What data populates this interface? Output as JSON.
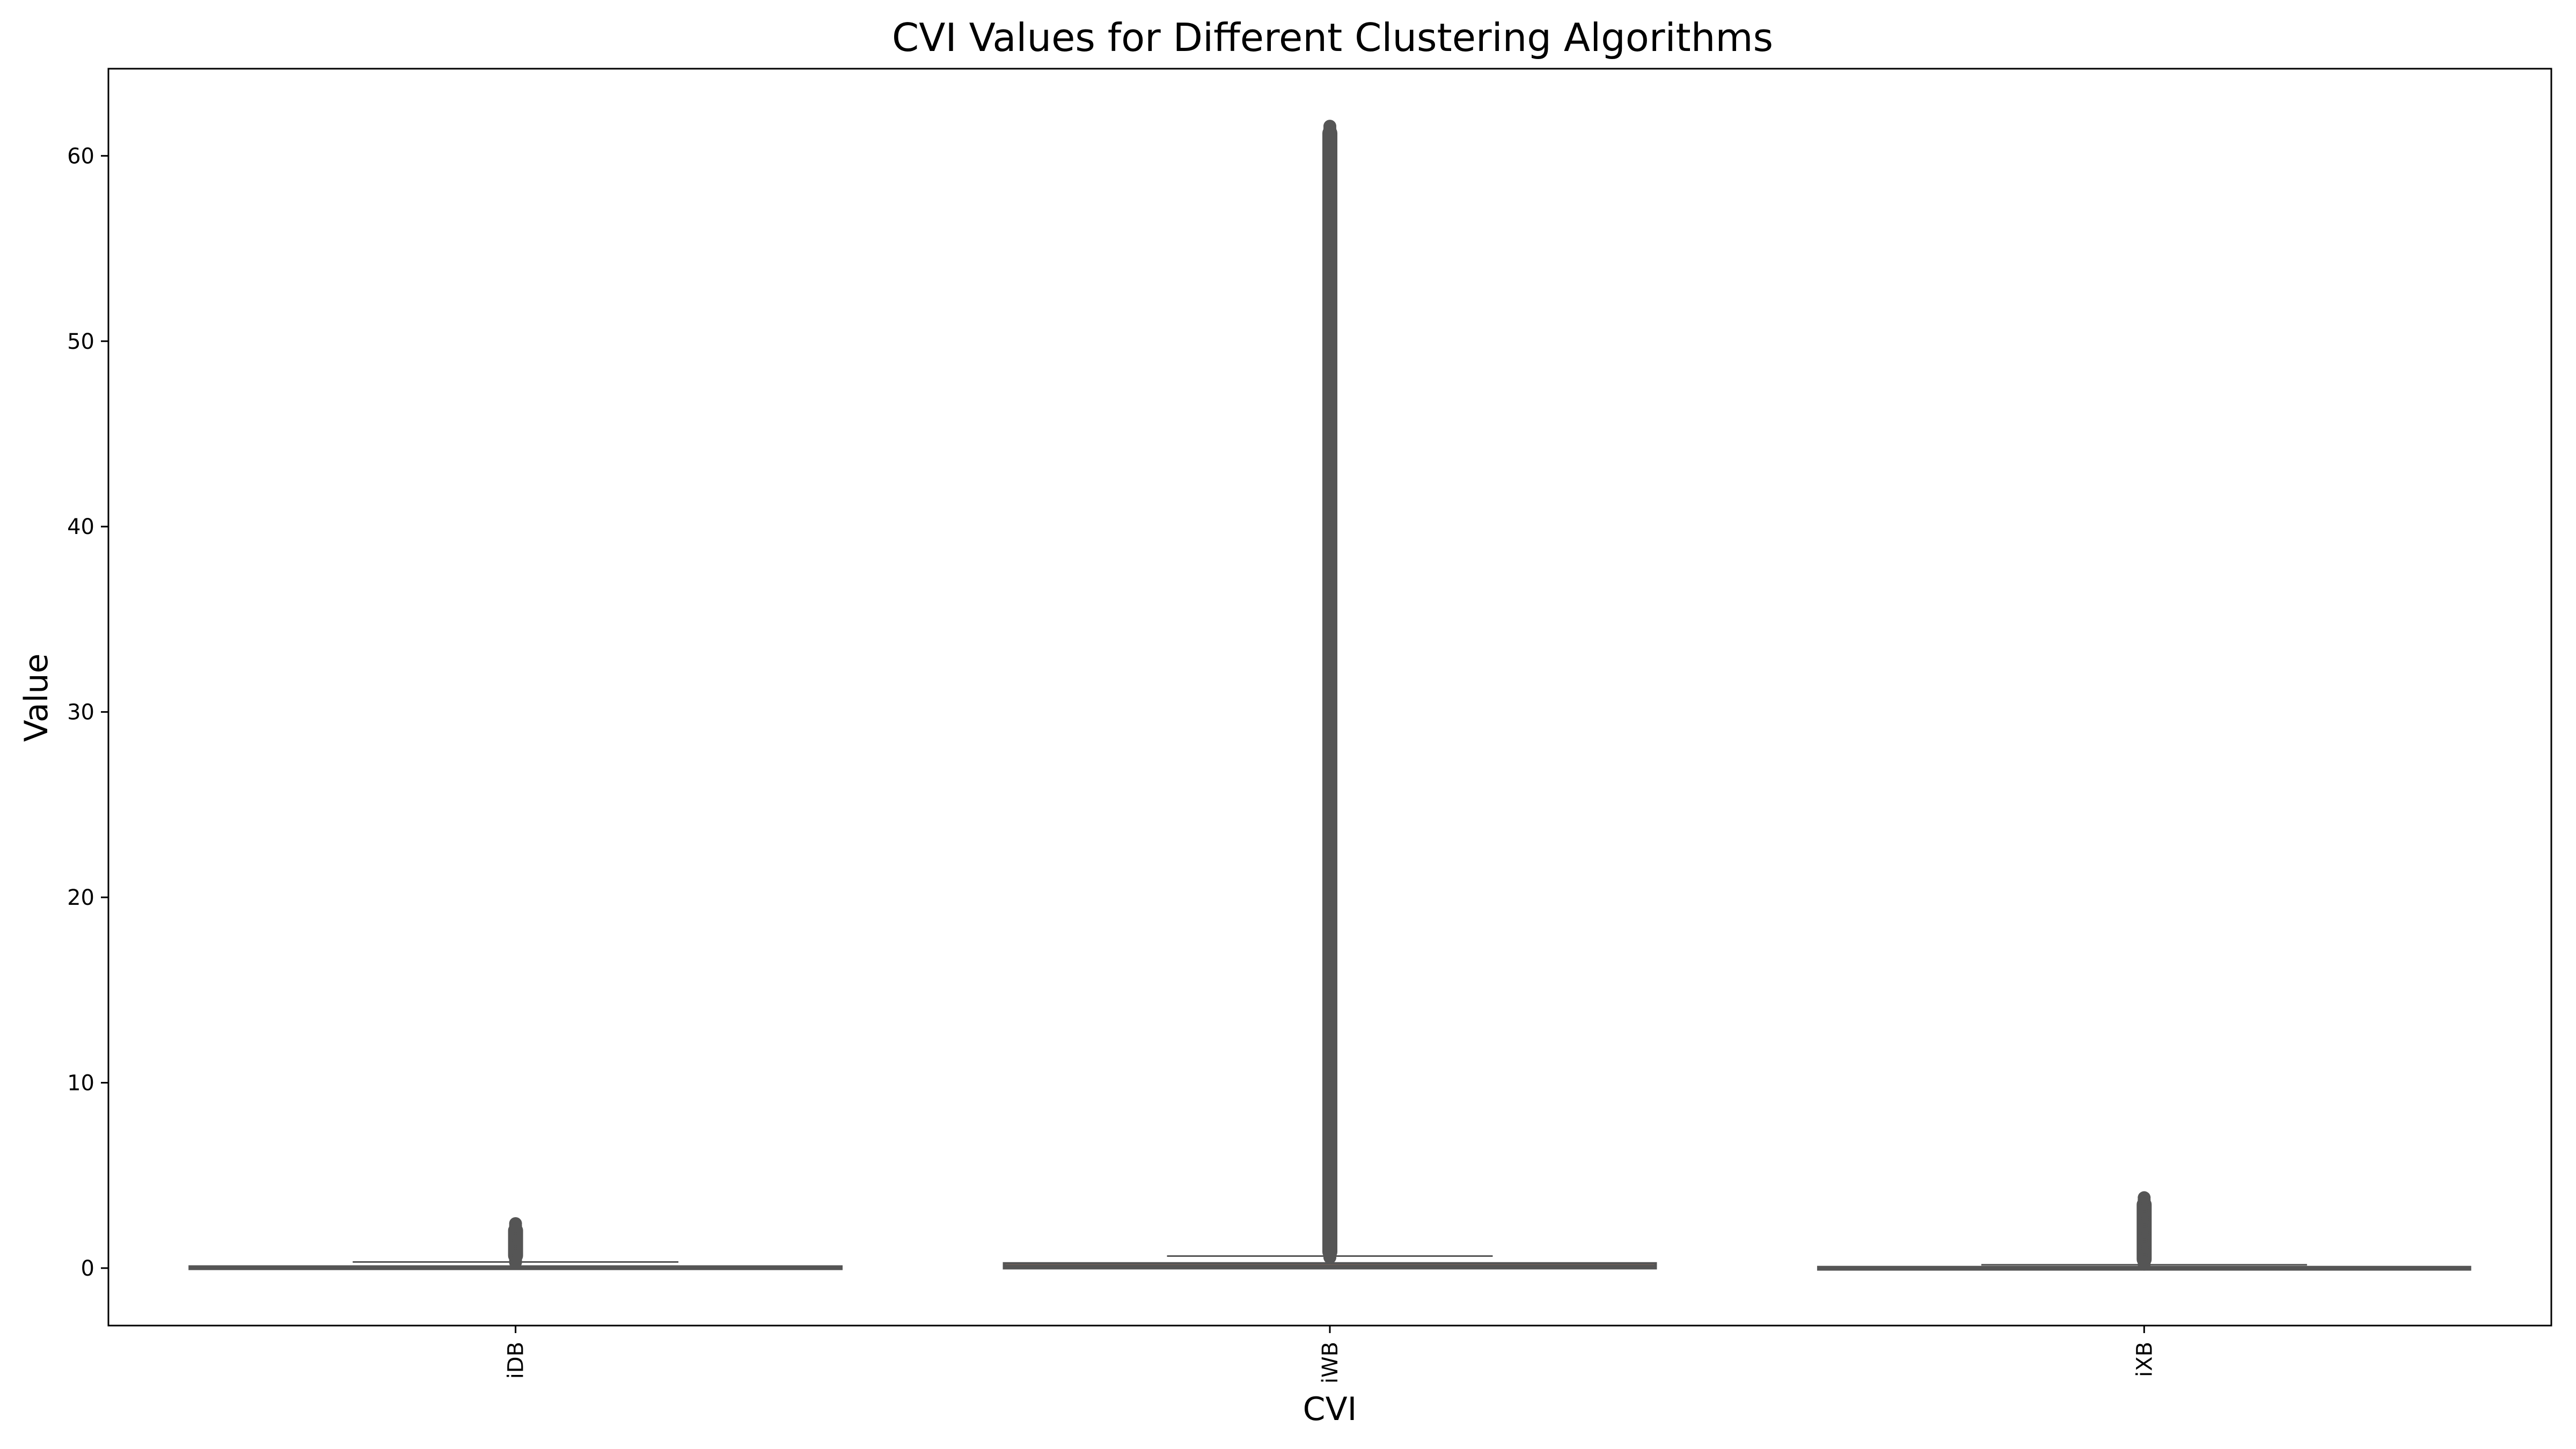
{
  "chart_data": {
    "type": "box",
    "title": "CVI Values for Different Clustering Algorithms",
    "xlabel": "CVI",
    "ylabel": "Value",
    "categories": [
      "iDB",
      "iWB",
      "iXB"
    ],
    "ylim": [
      -3.1,
      64.7
    ],
    "yticks": [
      "0",
      "10",
      "20",
      "30",
      "40",
      "50",
      "60"
    ],
    "grid": false,
    "colors": {
      "box_edge": "#555555",
      "line": "#555555",
      "iWB_fill": "#ee8866",
      "frame": "#000000"
    },
    "boxes": [
      {
        "name": "iDB",
        "whisker_low": 0.0,
        "q1": 0.02,
        "median": 0.05,
        "q3": 0.08,
        "whisker_high": 0.33,
        "outlier_range": [
          0.3,
          2.4
        ]
      },
      {
        "name": "iWB",
        "whisker_low": 0.0,
        "q1": 0.0,
        "median": 0.1,
        "q3": 0.25,
        "whisker_high": 0.65,
        "outlier_range": [
          0.5,
          61.6
        ]
      },
      {
        "name": "iXB",
        "whisker_low": 0.0,
        "q1": 0.0,
        "median": 0.03,
        "q3": 0.05,
        "whisker_high": 0.18,
        "outlier_range": [
          0.1,
          3.8
        ]
      }
    ]
  }
}
